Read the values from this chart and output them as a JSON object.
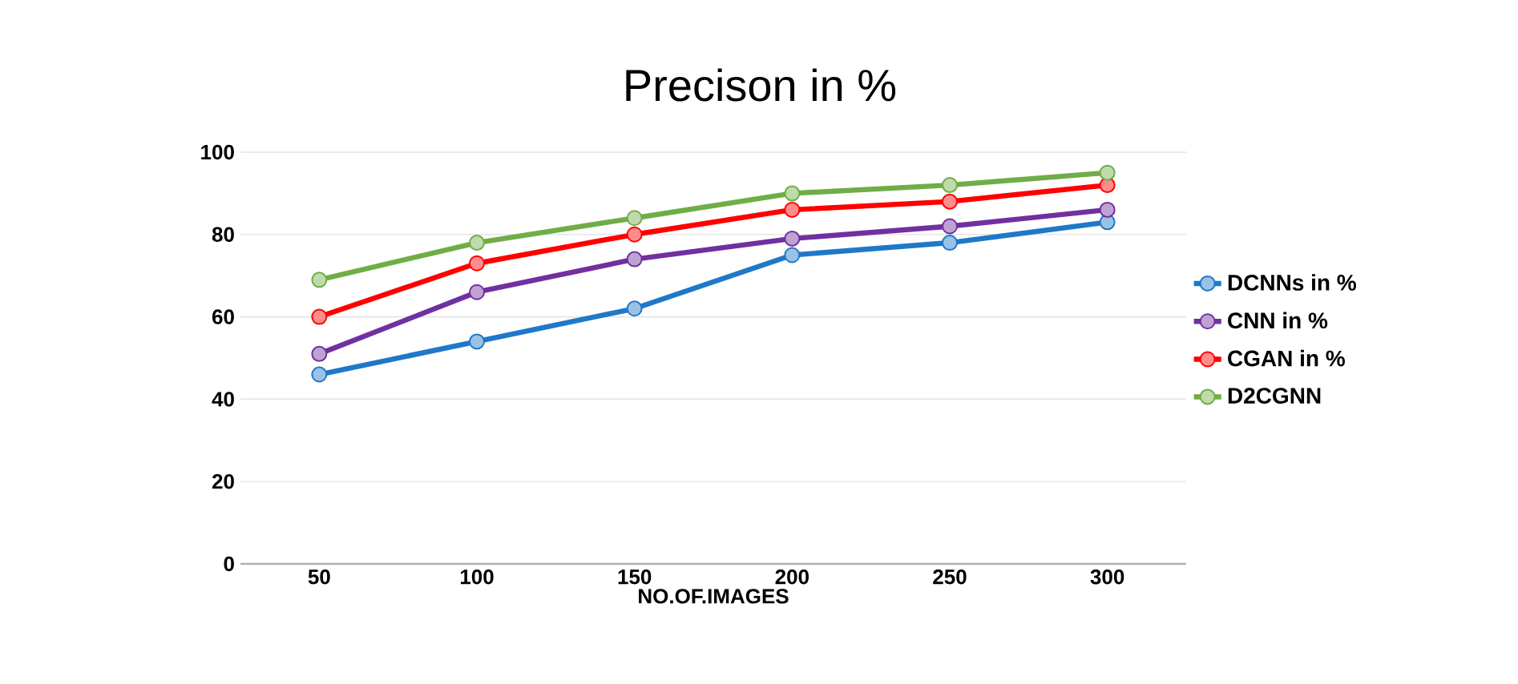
{
  "chart_data": {
    "type": "line",
    "title": "Precison in %",
    "xlabel": "NO.OF.IMAGES",
    "categories": [
      "50",
      "100",
      "150",
      "200",
      "250",
      "300"
    ],
    "series": [
      {
        "name": "DCNNs in %",
        "color": "#1f78c8",
        "values": [
          46,
          54,
          62,
          75,
          78,
          83
        ]
      },
      {
        "name": "CNN in %",
        "color": "#7030a0",
        "values": [
          51,
          66,
          74,
          79,
          82,
          86
        ]
      },
      {
        "name": "CGAN in %",
        "color": "#ff0000",
        "values": [
          60,
          73,
          80,
          86,
          88,
          92
        ]
      },
      {
        "name": "D2CGNN",
        "color": "#70ad47",
        "values": [
          69,
          78,
          84,
          90,
          92,
          95
        ]
      }
    ],
    "ylim": [
      0,
      100
    ],
    "yticks": [
      0,
      20,
      40,
      60,
      80,
      100
    ],
    "grid": "y",
    "legend": "right",
    "marker": "circle",
    "line_style": "solid"
  }
}
